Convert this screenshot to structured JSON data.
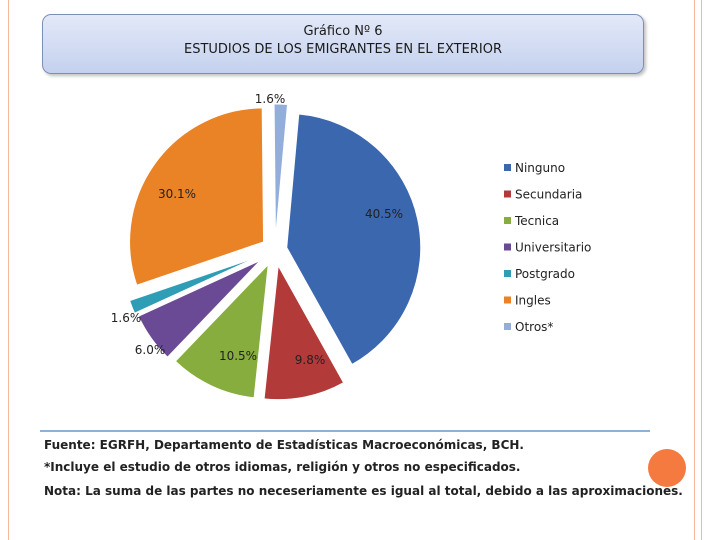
{
  "title": {
    "line1": "Gráfico Nº 6",
    "line2": "ESTUDIOS DE LOS EMIGRANTES EN EL EXTERIOR"
  },
  "chart_data": {
    "type": "pie",
    "title": "ESTUDIOS DE LOS EMIGRANTES EN EL EXTERIOR",
    "exploded": true,
    "legend_position": "right",
    "slices": [
      {
        "name": "Ninguno",
        "value": 40.5,
        "label": "40.5%",
        "color": "#3a67ae"
      },
      {
        "name": "Secundaria",
        "value": 9.8,
        "label": "9.8%",
        "color": "#b23b39"
      },
      {
        "name": "Tecnica",
        "value": 10.5,
        "label": "10.5%",
        "color": "#86ad3d"
      },
      {
        "name": "Universitario",
        "value": 6.0,
        "label": "6.0%",
        "color": "#6a4a94"
      },
      {
        "name": "Postgrado",
        "value": 1.6,
        "label": "1.6%",
        "color": "#2f9db5"
      },
      {
        "name": "Ingles",
        "value": 30.1,
        "label": "30.1%",
        "color": "#ea8226"
      },
      {
        "name": "Otros*",
        "value": 1.6,
        "label": "1.6%",
        "color": "#93aedb"
      }
    ]
  },
  "footer": {
    "source": "Fuente: EGRFH, Departamento de Estadísticas Macroeconómicas, BCH.",
    "note1": "*Incluye el estudio de otros idiomas, religión y otros no especificados.",
    "note2": "Nota: La suma de las partes no neceseriamente es igual al total, debido a las aproximaciones."
  }
}
